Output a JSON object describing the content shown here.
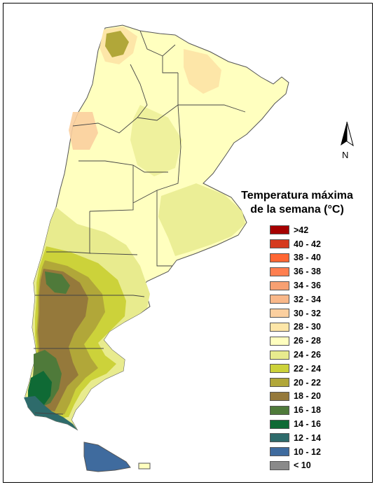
{
  "title_line1": "Temperatura máxima",
  "title_line2": "de la semana (°C)",
  "north_label": "N",
  "legend": [
    {
      "label": ">42",
      "color": "#a50000"
    },
    {
      "label": "40 - 42",
      "color": "#d53a1e"
    },
    {
      "label": "38 - 40",
      "color": "#ff6633"
    },
    {
      "label": "36 - 38",
      "color": "#ff7f50"
    },
    {
      "label": "34 - 36",
      "color": "#f7a072"
    },
    {
      "label": "32 - 34",
      "color": "#f9b88a"
    },
    {
      "label": "30 - 32",
      "color": "#fbcf9f"
    },
    {
      "label": "28 - 30",
      "color": "#fde6a8"
    },
    {
      "label": "26 - 28",
      "color": "#ffffbf"
    },
    {
      "label": "24 - 26",
      "color": "#e8eb8e"
    },
    {
      "label": "22 - 24",
      "color": "#ccd23a"
    },
    {
      "label": "20 - 22",
      "color": "#b1a739"
    },
    {
      "label": "18 - 20",
      "color": "#95793b"
    },
    {
      "label": "16 - 18",
      "color": "#4f7a3a"
    },
    {
      "label": "14 - 16",
      "color": "#0f6a35"
    },
    {
      "label": "12 - 14",
      "color": "#2e6b6b"
    },
    {
      "label": "10 - 12",
      "color": "#3f6b9e"
    },
    {
      "label": "< 10",
      "color": "#8a8a8a"
    }
  ]
}
